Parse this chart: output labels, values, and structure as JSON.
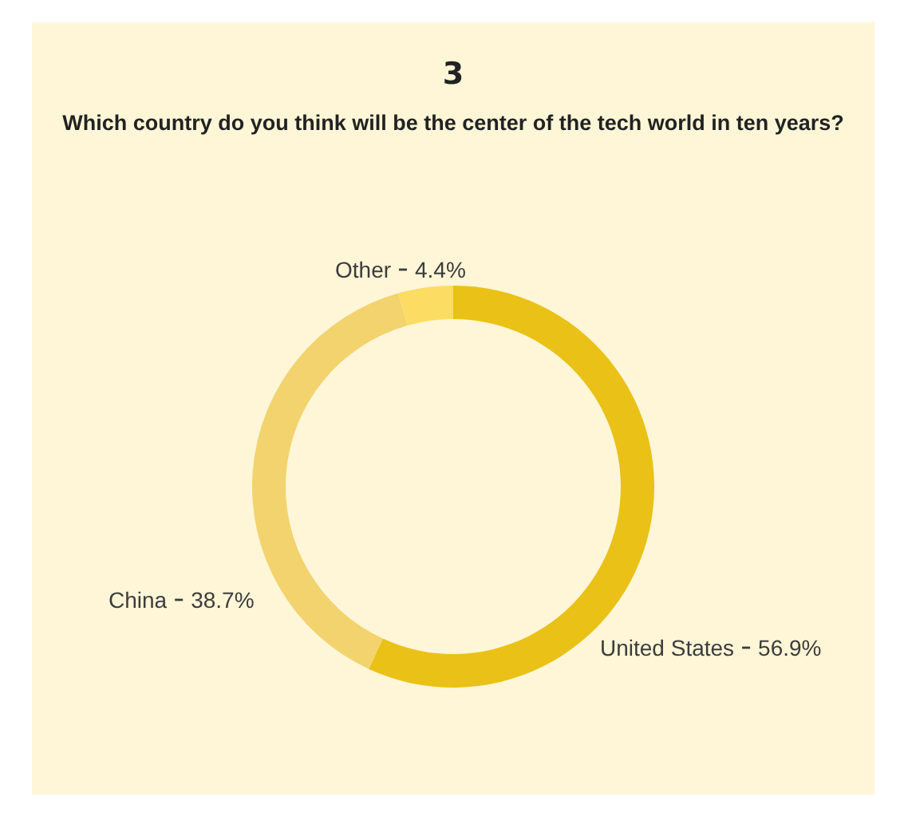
{
  "chart_data": {
    "type": "donut",
    "title": "3",
    "subtitle": "Which country do you think will be the center of the tech world in ten years?",
    "categories": [
      "United States",
      "China",
      "Other"
    ],
    "values": [
      56.9,
      38.7,
      4.4
    ],
    "colors": [
      "#eac117",
      "#f2d36e",
      "#fddc64"
    ],
    "value_labels": [
      "56.9%",
      "38.7%",
      "4.4%"
    ],
    "legend": false
  }
}
